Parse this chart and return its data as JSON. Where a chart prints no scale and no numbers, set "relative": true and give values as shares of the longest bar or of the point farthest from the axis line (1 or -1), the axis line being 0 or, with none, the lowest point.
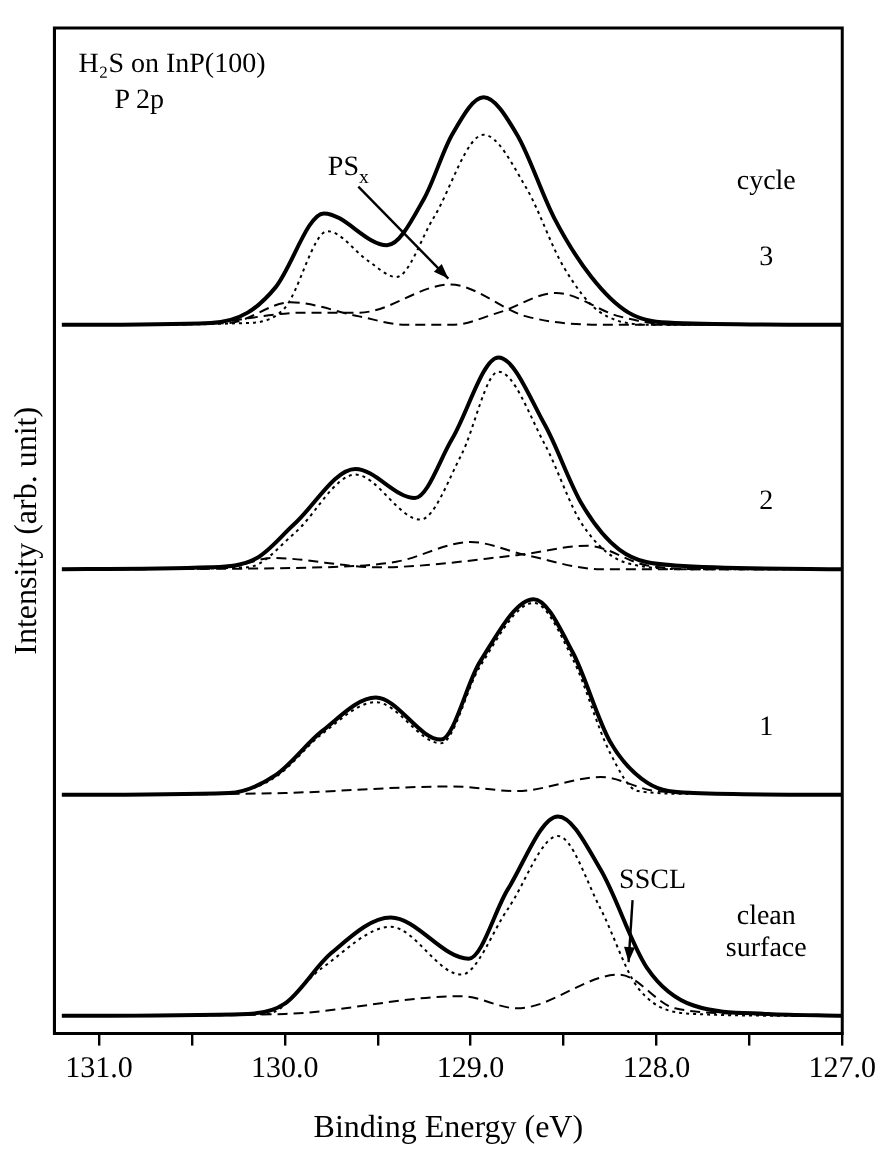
{
  "chart_data": {
    "type": "line",
    "relative": true,
    "xlabel": "Binding Energy (eV)",
    "ylabel": "Intensity (arb. unit)",
    "legend_title": "cycle",
    "xlim": [
      131.24,
      127.0
    ],
    "xticks": [
      {
        "value": 131,
        "label": "131.0"
      },
      {
        "value": 130.5,
        "label": null
      },
      {
        "value": 130,
        "label": "130.0"
      },
      {
        "value": 129.5,
        "label": null
      },
      {
        "value": 129,
        "label": "129.0"
      },
      {
        "value": 128.5,
        "label": null
      },
      {
        "value": 128,
        "label": "128.0"
      },
      {
        "value": 127.5,
        "label": null
      },
      {
        "value": 127,
        "label": "127.0"
      }
    ],
    "annotations": [
      "H₂S on InP(100)",
      "P 2p",
      {
        "text": "PS$_{x}$",
        "x": 129.12,
        "y": 0.8
      },
      {
        "text": "SSCL",
        "x": 128.15,
        "y": 0.07
      }
    ],
    "series": [
      {
        "name": "3",
        "color": "#000000",
        "line_style": "solid",
        "x": [
          131.2,
          130.4,
          130.2,
          130.05,
          129.79,
          129.45,
          129.25,
          129.1,
          128.93,
          128.75,
          128.55,
          128.35,
          128.15,
          127.9,
          127.0
        ],
        "values": [
          0.757,
          0.759,
          0.77,
          0.797,
          0.876,
          0.842,
          0.892,
          0.96,
          1.0,
          0.96,
          0.871,
          0.808,
          0.77,
          0.759,
          0.757
        ]
      },
      {
        "color": "#000000",
        "line_style": "dotted",
        "x": [
          131.0,
          130.2,
          130.0,
          129.77,
          129.55,
          129.4,
          129.2,
          128.93,
          128.7,
          128.5,
          128.3,
          128.0,
          127.2
        ],
        "values": [
          0.757,
          0.759,
          0.775,
          0.857,
          0.825,
          0.808,
          0.871,
          0.96,
          0.903,
          0.819,
          0.77,
          0.757,
          0.757
        ]
      },
      {
        "color": "#000000",
        "line_style": "dashed",
        "x": [
          130.9,
          130.3,
          129.97,
          129.6,
          129.35,
          129.1,
          128.85,
          128.54,
          128.2,
          127.9,
          127.3
        ],
        "values": [
          0.757,
          0.759,
          0.781,
          0.766,
          0.757,
          0.757,
          0.77,
          0.791,
          0.766,
          0.757,
          0.757
        ]
      },
      {
        "color": "#000000",
        "line_style": "dashed",
        "x": [
          130.8,
          130.4,
          129.9,
          129.6,
          129.11,
          128.7,
          128.3,
          127.4
        ],
        "values": [
          0.757,
          0.759,
          0.77,
          0.77,
          0.8,
          0.766,
          0.757,
          0.757
        ]
      },
      {
        "name": "2",
        "color": "#000000",
        "line_style": "solid",
        "x": [
          131.2,
          130.4,
          130.15,
          129.95,
          129.62,
          129.3,
          129.1,
          128.85,
          128.6,
          128.4,
          128.2,
          127.9,
          127.0
        ],
        "values": [
          0.496,
          0.498,
          0.508,
          0.544,
          0.603,
          0.572,
          0.635,
          0.722,
          0.65,
          0.565,
          0.517,
          0.5,
          0.496
        ]
      },
      {
        "color": "#000000",
        "line_style": "dotted",
        "x": [
          131.0,
          130.2,
          129.95,
          129.62,
          129.27,
          129.05,
          128.85,
          128.6,
          128.4,
          128.15,
          127.8,
          127.2
        ],
        "values": [
          0.496,
          0.498,
          0.534,
          0.597,
          0.549,
          0.618,
          0.707,
          0.629,
          0.544,
          0.502,
          0.496,
          0.496
        ]
      },
      {
        "color": "#000000",
        "line_style": "dashed",
        "x": [
          130.9,
          130.3,
          130.07,
          129.5,
          128.75,
          128.37,
          128.05,
          127.7,
          127.3
        ],
        "values": [
          0.496,
          0.498,
          0.508,
          0.498,
          0.511,
          0.521,
          0.5,
          0.496,
          0.496
        ]
      },
      {
        "color": "#000000",
        "line_style": "dashed",
        "x": [
          130.8,
          129.8,
          129.4,
          129.0,
          128.7,
          128.3,
          127.4
        ],
        "values": [
          0.496,
          0.498,
          0.504,
          0.525,
          0.511,
          0.496,
          0.496
        ]
      },
      {
        "name": "1",
        "color": "#000000",
        "line_style": "solid",
        "x": [
          131.2,
          130.3,
          130.05,
          129.8,
          129.51,
          129.16,
          128.95,
          128.66,
          128.45,
          128.25,
          128.05,
          127.8,
          127.0
        ],
        "values": [
          0.255,
          0.257,
          0.276,
          0.323,
          0.359,
          0.314,
          0.397,
          0.464,
          0.407,
          0.312,
          0.268,
          0.257,
          0.255
        ]
      },
      {
        "color": "#000000",
        "line_style": "dotted",
        "x": [
          131.0,
          130.3,
          130.05,
          129.8,
          129.51,
          129.16,
          128.95,
          128.66,
          128.45,
          128.25,
          128.1,
          127.8,
          127.2
        ],
        "values": [
          0.255,
          0.257,
          0.274,
          0.32,
          0.354,
          0.31,
          0.392,
          0.46,
          0.4,
          0.3,
          0.259,
          0.256,
          0.255
        ]
      },
      {
        "color": "#000000",
        "line_style": "dashed",
        "x": [
          130.9,
          130.0,
          129.1,
          128.75,
          128.3,
          128.0,
          127.3
        ],
        "values": [
          0.255,
          0.257,
          0.264,
          0.259,
          0.274,
          0.259,
          0.255
        ]
      },
      {
        "name": "clean surface",
        "color": "#000000",
        "line_style": "solid",
        "x": [
          131.2,
          130.2,
          130.0,
          129.75,
          129.43,
          129.01,
          128.8,
          128.53,
          128.3,
          128.05,
          127.8,
          127.4,
          127.0
        ],
        "values": [
          0.019,
          0.021,
          0.032,
          0.086,
          0.124,
          0.08,
          0.154,
          0.232,
          0.175,
          0.07,
          0.03,
          0.021,
          0.019
        ]
      },
      {
        "color": "#000000",
        "line_style": "dotted",
        "x": [
          131.0,
          130.1,
          129.8,
          129.43,
          129.05,
          128.8,
          128.53,
          128.3,
          128.1,
          127.8,
          127.2
        ],
        "values": [
          0.019,
          0.021,
          0.07,
          0.114,
          0.063,
          0.133,
          0.211,
          0.133,
          0.049,
          0.021,
          0.019
        ]
      },
      {
        "color": "#000000",
        "line_style": "dashed",
        "x": [
          130.9,
          130.0,
          129.05,
          128.75,
          128.2,
          127.9,
          127.5,
          127.3
        ],
        "values": [
          0.019,
          0.021,
          0.04,
          0.027,
          0.063,
          0.027,
          0.021,
          0.019
        ]
      }
    ]
  }
}
